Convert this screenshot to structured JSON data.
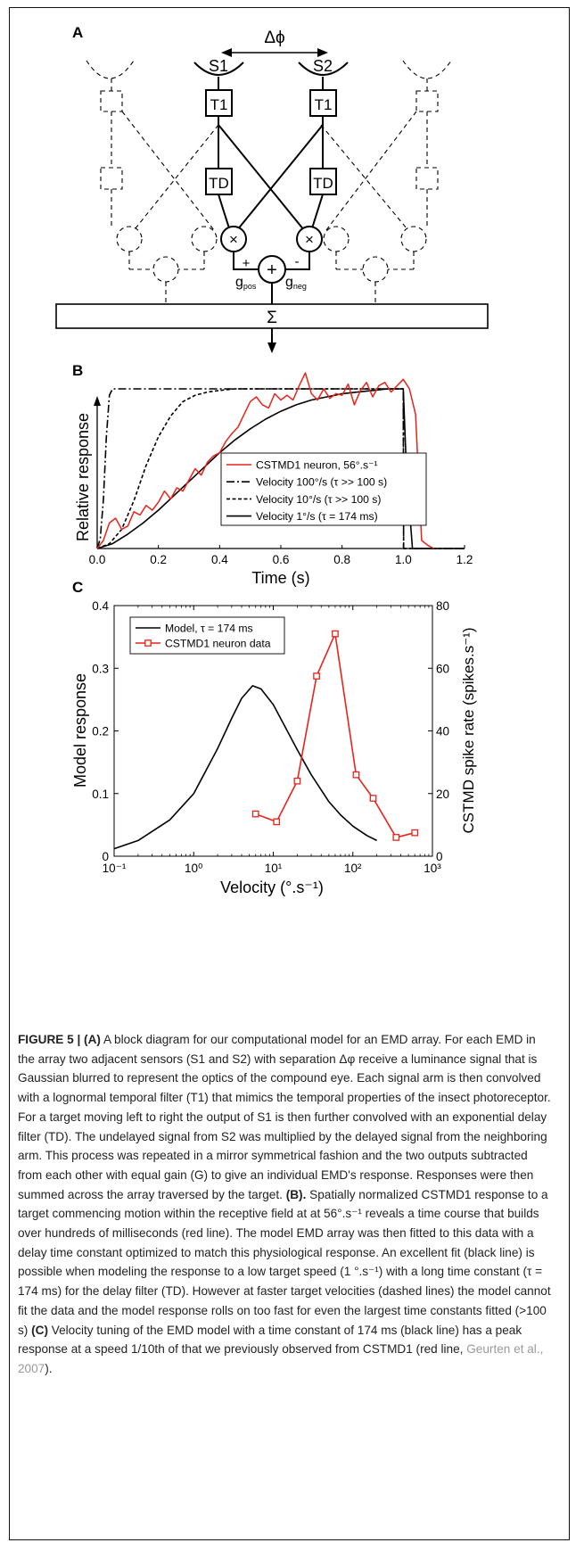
{
  "figure": {
    "panels": {
      "a": "A",
      "b": "B",
      "c": "C"
    },
    "diagram": {
      "delta_phi": "Δϕ",
      "sensor_1": "S1",
      "sensor_2": "S2",
      "filter_t1": "T1",
      "filter_td": "TD",
      "multiply": "×",
      "add": "+",
      "plus": "+",
      "minus": "-",
      "g": "g",
      "pos": "pos",
      "neg": "neg",
      "sum": "Σ"
    }
  },
  "chart_data": [
    {
      "type": "line",
      "panel": "B",
      "xlabel": "Time (s)",
      "ylabel": "Relative response",
      "xlim": [
        0,
        1.2
      ],
      "x_ticks": [
        "0.0",
        "0.2",
        "0.4",
        "0.6",
        "0.8",
        "1.0",
        "1.2"
      ],
      "legend_position": "center-right",
      "grid": false,
      "series": [
        {
          "name": "CSTMD1 neuron, 56°.s⁻¹",
          "color": "#e8231a",
          "style": "solid",
          "x": [
            0.0,
            0.02,
            0.04,
            0.06,
            0.08,
            0.1,
            0.12,
            0.14,
            0.16,
            0.18,
            0.2,
            0.22,
            0.24,
            0.26,
            0.28,
            0.3,
            0.32,
            0.34,
            0.36,
            0.38,
            0.4,
            0.42,
            0.44,
            0.46,
            0.48,
            0.5,
            0.52,
            0.54,
            0.56,
            0.58,
            0.6,
            0.62,
            0.64,
            0.66,
            0.68,
            0.7,
            0.72,
            0.74,
            0.76,
            0.78,
            0.8,
            0.82,
            0.84,
            0.86,
            0.88,
            0.9,
            0.92,
            0.94,
            0.96,
            0.98,
            1.0,
            1.02,
            1.04,
            1.06,
            1.08,
            1.1
          ],
          "y": [
            0.0,
            0.05,
            0.16,
            0.19,
            0.12,
            0.14,
            0.23,
            0.21,
            0.27,
            0.24,
            0.29,
            0.36,
            0.31,
            0.38,
            0.36,
            0.43,
            0.5,
            0.46,
            0.54,
            0.58,
            0.6,
            0.67,
            0.72,
            0.76,
            0.84,
            0.92,
            0.95,
            0.9,
            0.88,
            0.97,
            0.93,
            0.96,
            0.93,
            1.02,
            1.1,
            0.97,
            0.93,
            1.0,
            0.94,
            0.97,
            0.96,
            1.03,
            0.9,
            0.99,
            1.04,
            0.95,
            1.02,
            1.04,
            0.98,
            1.02,
            1.06,
            1.0,
            0.84,
            0.05,
            0.02,
            0.0
          ]
        },
        {
          "name": "Velocity 100°/s (τ >> 100 s)",
          "color": "#000000",
          "style": "dash-dot",
          "x": [
            0.0,
            0.01,
            0.02,
            0.03,
            0.04,
            0.05,
            0.06,
            0.08,
            1.0,
            1.001,
            1.2
          ],
          "y": [
            0.0,
            0.06,
            0.3,
            0.7,
            0.96,
            1.0,
            1.0,
            1.0,
            1.0,
            0.0,
            0.0
          ]
        },
        {
          "name": "Velocity 10°/s (τ >> 100 s)",
          "color": "#000000",
          "style": "dashed",
          "x": [
            0.0,
            0.04,
            0.08,
            0.12,
            0.16,
            0.2,
            0.24,
            0.28,
            0.32,
            0.36,
            0.4,
            0.45,
            1.0,
            1.001,
            1.2
          ],
          "y": [
            0.0,
            0.03,
            0.12,
            0.3,
            0.52,
            0.7,
            0.83,
            0.92,
            0.96,
            0.98,
            0.99,
            1.0,
            1.0,
            0.0,
            0.0
          ]
        },
        {
          "name": "Velocity 1°/s (τ = 174 ms)",
          "color": "#000000",
          "style": "solid",
          "x": [
            0.0,
            0.05,
            0.1,
            0.15,
            0.2,
            0.25,
            0.3,
            0.35,
            0.4,
            0.45,
            0.5,
            0.55,
            0.6,
            0.65,
            0.7,
            0.75,
            0.8,
            0.85,
            0.9,
            0.95,
            1.0,
            1.01,
            1.03,
            1.2
          ],
          "y": [
            0.0,
            0.03,
            0.09,
            0.16,
            0.24,
            0.33,
            0.42,
            0.51,
            0.6,
            0.68,
            0.75,
            0.81,
            0.86,
            0.9,
            0.93,
            0.95,
            0.97,
            0.98,
            0.99,
            1.0,
            1.0,
            0.5,
            0.0,
            0.0
          ]
        }
      ]
    },
    {
      "type": "line",
      "panel": "C",
      "xlabel": "Velocity (°.s⁻¹)",
      "x_scale": "log",
      "xlim": [
        0.1,
        1000
      ],
      "x_ticks": [
        "10⁻¹",
        "10⁰",
        "10¹",
        "10²",
        "10³"
      ],
      "ylabel_left": "Model response",
      "ylim_left": [
        0,
        0.4
      ],
      "y_ticks_left": [
        "0",
        "0.1",
        "0.2",
        "0.3",
        "0.4"
      ],
      "ylabel_right": "CSTMD spike rate (spikes.s⁻¹)",
      "ylim_right": [
        0,
        80
      ],
      "y_ticks_right": [
        "0",
        "20",
        "40",
        "60",
        "80"
      ],
      "legend_position": "top-left",
      "grid": false,
      "series": [
        {
          "name": "Model, τ = 174 ms",
          "color": "#000000",
          "axis": "left",
          "x": [
            0.1,
            0.2,
            0.5,
            1,
            2,
            3,
            4,
            5.5,
            7,
            10,
            15,
            20,
            30,
            50,
            70,
            100,
            150,
            200
          ],
          "y": [
            0.012,
            0.025,
            0.058,
            0.1,
            0.172,
            0.22,
            0.252,
            0.272,
            0.267,
            0.242,
            0.2,
            0.17,
            0.13,
            0.087,
            0.066,
            0.048,
            0.033,
            0.025
          ]
        },
        {
          "name": "CSTMD1 neuron data",
          "color": "#e8231a",
          "axis": "right",
          "markers": "square",
          "x": [
            6,
            11,
            20,
            35,
            60,
            110,
            180,
            350,
            600
          ],
          "y": [
            13.5,
            11,
            24,
            57.5,
            71,
            26,
            18.5,
            6,
            7.5
          ]
        }
      ]
    }
  ],
  "caption": {
    "label": "FIGURE 5 | (A)",
    "s1": " A block diagram for our computational model for an EMD array. For each EMD in the array two adjacent sensors (S1 and S2) with separation Δφ receive a luminance signal that is Gaussian blurred to represent the optics of the compound eye. Each signal arm is then convolved with a lognormal temporal filter (T1) that mimics the temporal properties of the insect photoreceptor. For a target moving left to right the output of S1 is then further convolved with an exponential delay filter (TD). The undelayed signal from S2 was multiplied by the delayed signal from the neighboring arm. This process was repeated in a mirror symmetrical fashion and the two outputs subtracted from each other with equal gain (G) to give an individual EMD's response. Responses were then summed across the array traversed by the target. ",
    "label_b": "(B).",
    "s2": " Spatially normalized CSTMD1 response to a target commencing motion within the receptive field at at 56°.s⁻¹ reveals a time course that builds over hundreds of milliseconds (red line). The model EMD array was then fitted to this data with a delay time constant optimized to match this physiological response. An excellent fit (black line) is possible when modeling the response to a low target speed (1 °.s⁻¹) with a long time constant (τ = 174 ms) for the delay filter (TD). However at faster target velocities (dashed lines) the model cannot fit the data and the model response rolls on too fast for even the largest time constants fitted (>100 s) ",
    "label_c": "(C)",
    "s3": " Velocity tuning of the EMD model with a time constant of 174 ms (black line) has a peak response at a speed 1/10th of that we previously observed from CSTMD1 (red line, ",
    "ref": "Geurten et al., 2007",
    "s4": ")."
  }
}
